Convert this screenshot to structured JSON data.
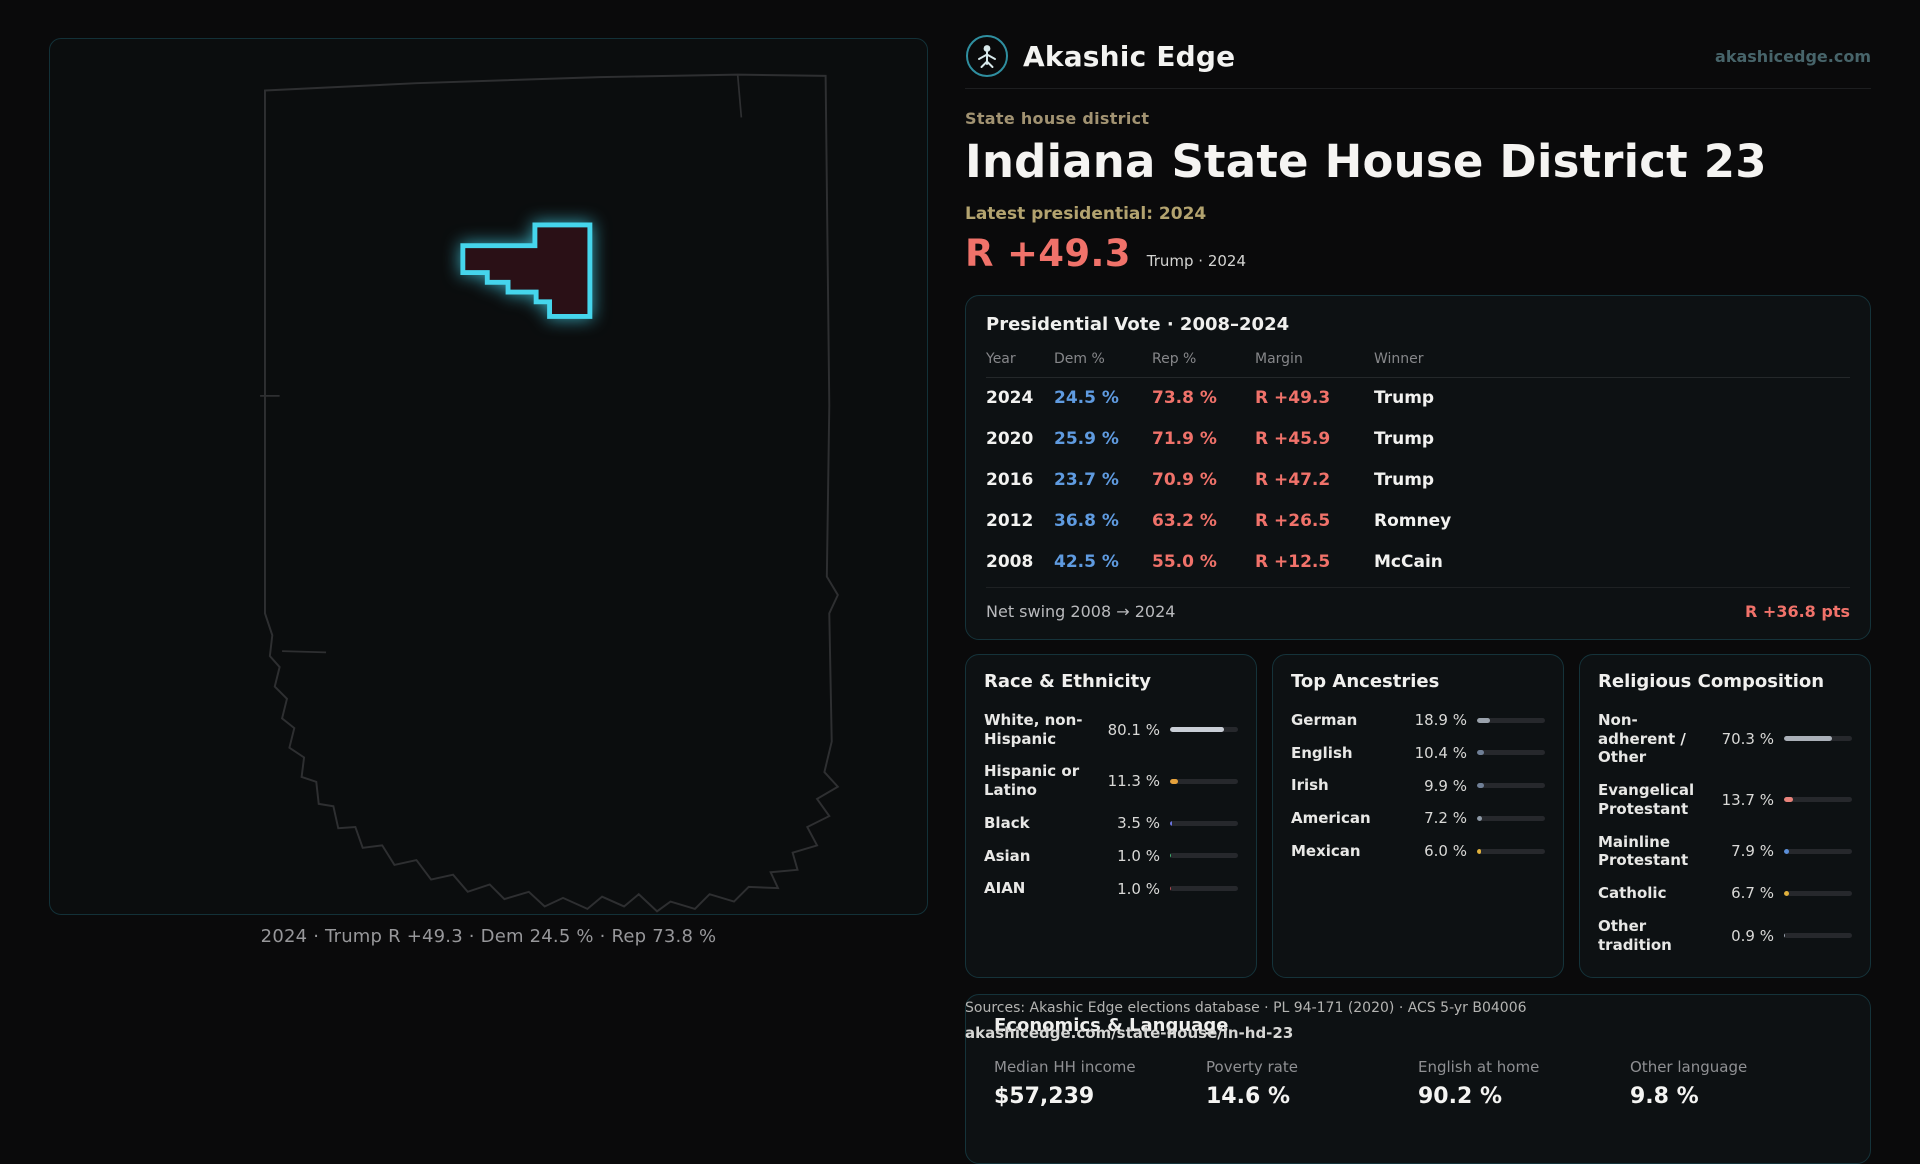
{
  "theme": {
    "accent_cyan": "#45d5ec",
    "dem_blue": "#5f9be0",
    "rep_red": "#f0726a",
    "tan_label": "#b3a36f",
    "card_border": "#15333a"
  },
  "header": {
    "brand": "Akashic Edge",
    "domain": "akashicedge.com"
  },
  "map": {
    "caption": "2024 · Trump R +49.3 · Dem 24.5 % · Rep 73.8 %"
  },
  "district": {
    "type_label": "State house district",
    "title": "Indiana State House District 23",
    "latest_label": "Latest presidential: 2024",
    "margin_big": "R +49.3",
    "margin_context": "Trump · 2024"
  },
  "presidential_table": {
    "title": "Presidential Vote · 2008–2024",
    "columns": [
      "Year",
      "Dem %",
      "Rep %",
      "Margin",
      "Winner"
    ],
    "rows": [
      {
        "year": "2024",
        "dem": "24.5 %",
        "rep": "73.8 %",
        "margin": "R +49.3",
        "winner": "Trump"
      },
      {
        "year": "2020",
        "dem": "25.9 %",
        "rep": "71.9 %",
        "margin": "R +45.9",
        "winner": "Trump"
      },
      {
        "year": "2016",
        "dem": "23.7 %",
        "rep": "70.9 %",
        "margin": "R +47.2",
        "winner": "Trump"
      },
      {
        "year": "2012",
        "dem": "36.8 %",
        "rep": "63.2 %",
        "margin": "R +26.5",
        "winner": "Romney"
      },
      {
        "year": "2008",
        "dem": "42.5 %",
        "rep": "55.0 %",
        "margin": "R +12.5",
        "winner": "McCain"
      }
    ],
    "net_swing_label": "Net swing 2008 → 2024",
    "net_swing_value": "R +36.8 pts"
  },
  "race_ethnicity": {
    "title": "Race & Ethnicity",
    "rows": [
      {
        "label": "White, non-Hispanic",
        "value": "80.1 %",
        "pct": 80.1,
        "color": "#c9ced6"
      },
      {
        "label": "Hispanic or Latino",
        "value": "11.3 %",
        "pct": 11.3,
        "color": "#e6a23c"
      },
      {
        "label": "Black",
        "value": "3.5 %",
        "pct": 3.5,
        "color": "#6b74e0"
      },
      {
        "label": "Asian",
        "value": "1.0 %",
        "pct": 1.0,
        "color": "#3fae6e"
      },
      {
        "label": "AIAN",
        "value": "1.0 %",
        "pct": 1.0,
        "color": "#b04a52"
      }
    ]
  },
  "ancestries": {
    "title": "Top Ancestries",
    "rows": [
      {
        "label": "German",
        "value": "18.9 %",
        "pct": 18.9,
        "color": "#9aa2ac"
      },
      {
        "label": "English",
        "value": "10.4 %",
        "pct": 10.4,
        "color": "#6f7f96"
      },
      {
        "label": "Irish",
        "value": "9.9 %",
        "pct": 9.9,
        "color": "#6f7f96"
      },
      {
        "label": "American",
        "value": "7.2 %",
        "pct": 7.2,
        "color": "#8d99a6"
      },
      {
        "label": "Mexican",
        "value": "6.0 %",
        "pct": 6.0,
        "color": "#e0b13c"
      }
    ]
  },
  "religion": {
    "title": "Religious Composition",
    "rows": [
      {
        "label": "Non-adherent / Other",
        "value": "70.3 %",
        "pct": 70.3,
        "color": "#aab0b8"
      },
      {
        "label": "Evangelical Protestant",
        "value": "13.7 %",
        "pct": 13.7,
        "color": "#e8837b"
      },
      {
        "label": "Mainline Protestant",
        "value": "7.9 %",
        "pct": 7.9,
        "color": "#5b8fd9"
      },
      {
        "label": "Catholic",
        "value": "6.7 %",
        "pct": 6.7,
        "color": "#e0b13c"
      },
      {
        "label": "Other tradition",
        "value": "0.9 %",
        "pct": 0.9,
        "color": "#9aa2ac"
      }
    ]
  },
  "economics": {
    "title": "Economics & Language",
    "stats": [
      {
        "label": "Median HH income",
        "value": "$57,239"
      },
      {
        "label": "Poverty rate",
        "value": "14.6 %"
      },
      {
        "label": "English at home",
        "value": "90.2 %"
      },
      {
        "label": "Other language",
        "value": "9.8 %"
      }
    ]
  },
  "footer": {
    "line1": "Sources: Akashic Edge elections database · PL 94-171 (2020) · ACS 5-yr B04006",
    "line2": "akashicedge.com/state-house/in-hd-23"
  }
}
